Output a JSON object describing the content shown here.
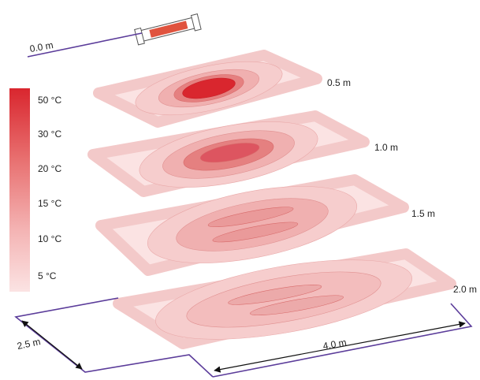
{
  "heater_label": "0.0 m",
  "planes": [
    {
      "label": "0.5 m"
    },
    {
      "label": "1.0 m"
    },
    {
      "label": "1.5 m"
    },
    {
      "label": "2.0 m"
    }
  ],
  "legend": [
    "50 °C",
    "30 °C",
    "20 °C",
    "15 °C",
    "10 °C",
    "5 °C"
  ],
  "dimensions": {
    "depth": "2.5 m",
    "width": "4.0 m"
  }
}
